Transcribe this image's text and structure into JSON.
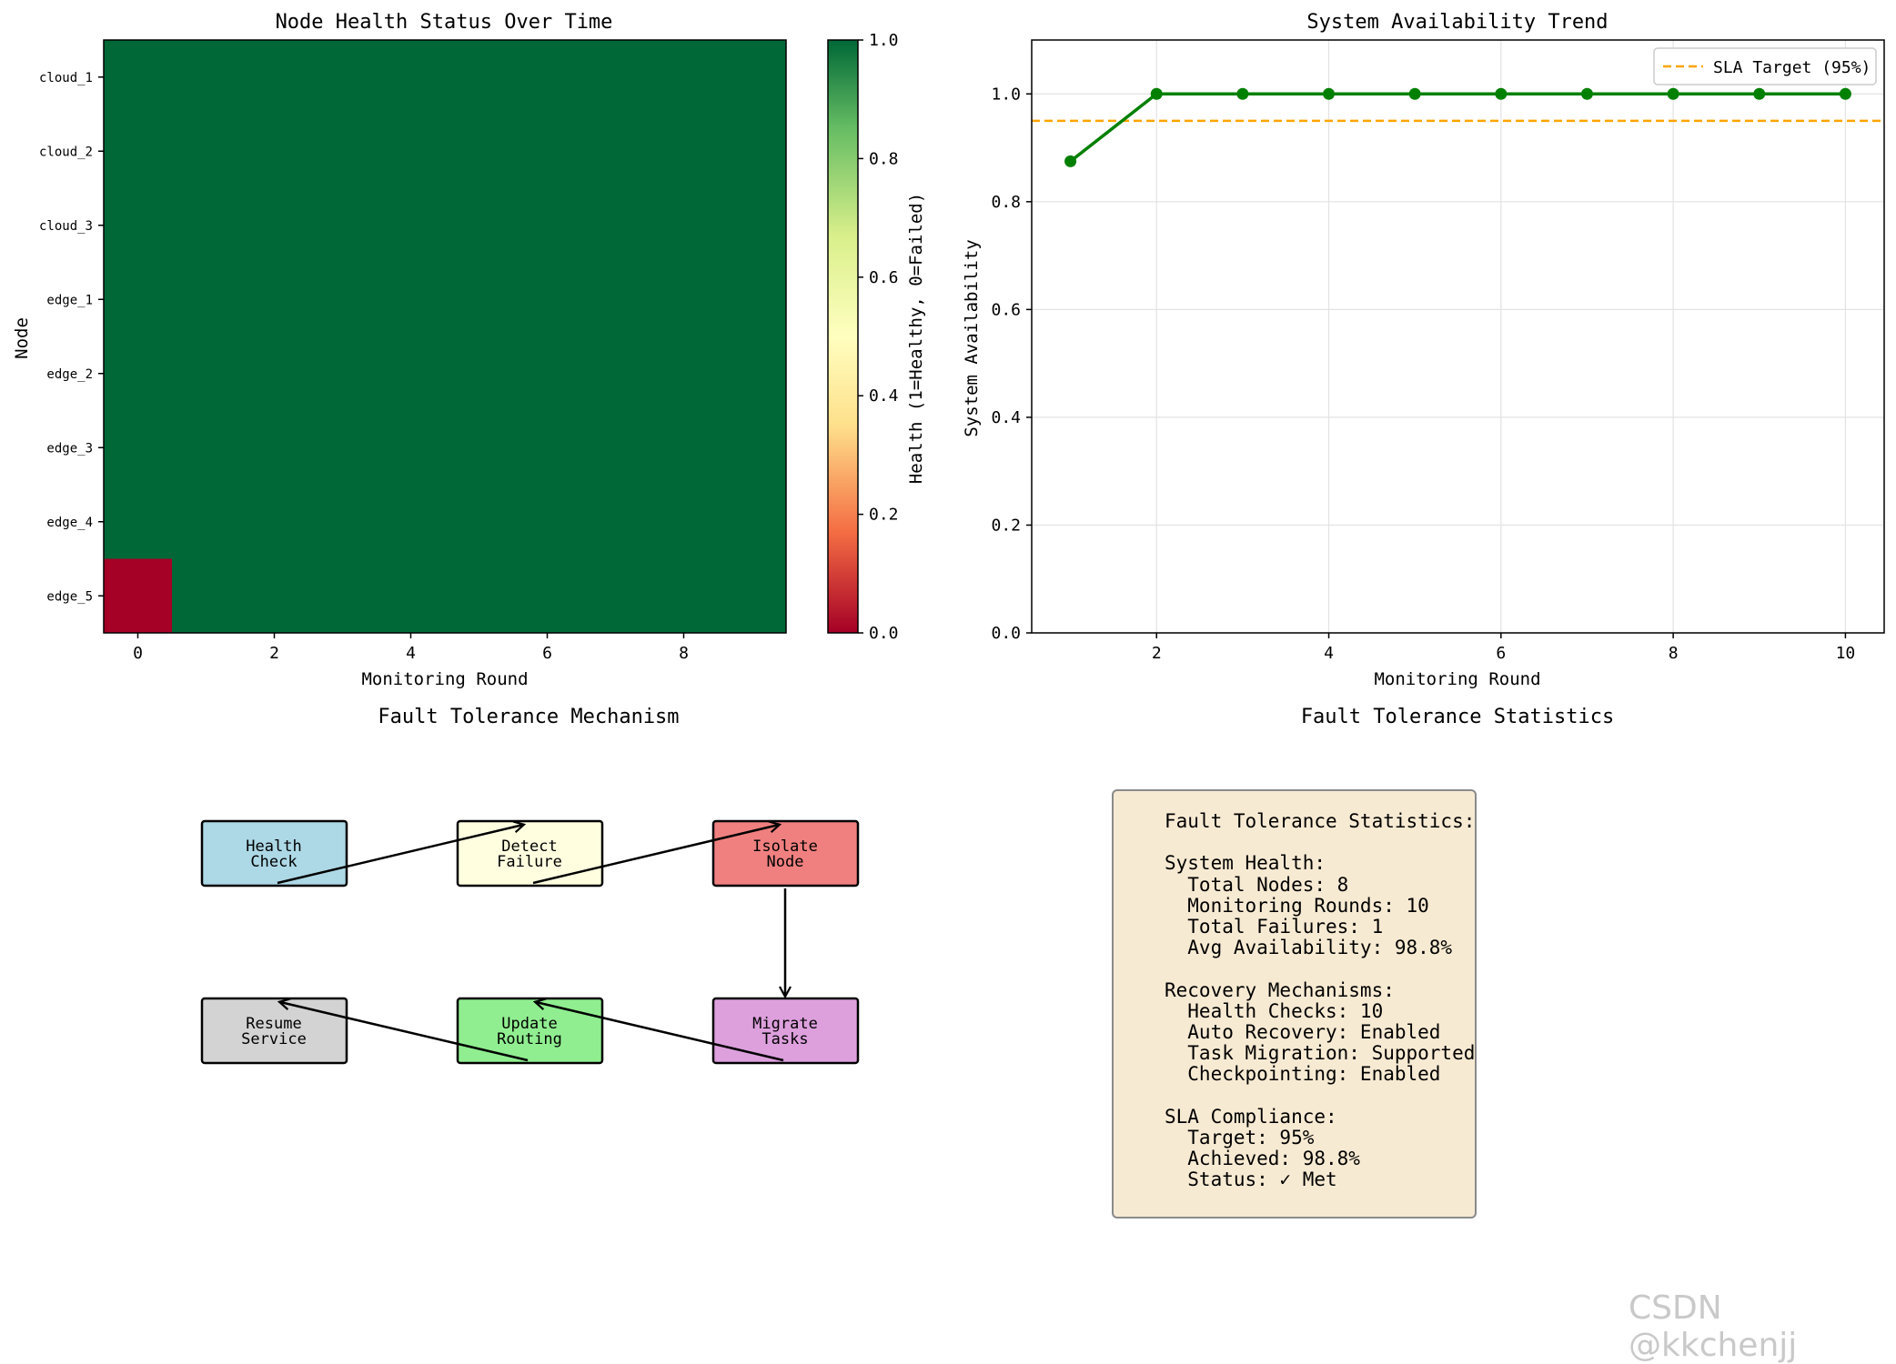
{
  "chart_data": [
    {
      "type": "heatmap",
      "title": "Node Health Status Over Time",
      "xlabel": "Monitoring Round",
      "ylabel": "Node",
      "rows": [
        "cloud_1",
        "cloud_2",
        "cloud_3",
        "edge_1",
        "edge_2",
        "edge_3",
        "edge_4",
        "edge_5"
      ],
      "x_ticks": [
        0,
        2,
        4,
        6,
        8
      ],
      "columns": 10,
      "values": [
        [
          1,
          1,
          1,
          1,
          1,
          1,
          1,
          1,
          1,
          1
        ],
        [
          1,
          1,
          1,
          1,
          1,
          1,
          1,
          1,
          1,
          1
        ],
        [
          1,
          1,
          1,
          1,
          1,
          1,
          1,
          1,
          1,
          1
        ],
        [
          1,
          1,
          1,
          1,
          1,
          1,
          1,
          1,
          1,
          1
        ],
        [
          1,
          1,
          1,
          1,
          1,
          1,
          1,
          1,
          1,
          1
        ],
        [
          1,
          1,
          1,
          1,
          1,
          1,
          1,
          1,
          1,
          1
        ],
        [
          1,
          1,
          1,
          1,
          1,
          1,
          1,
          1,
          1,
          1
        ],
        [
          0,
          1,
          1,
          1,
          1,
          1,
          1,
          1,
          1,
          1
        ]
      ],
      "colorbar": {
        "label": "Health (1=Healthy, 0=Failed)",
        "ticks": [
          "0.0",
          "0.2",
          "0.4",
          "0.6",
          "0.8",
          "1.0"
        ],
        "colormap": "RdYlGn",
        "colors": [
          "#a50026",
          "#f46d43",
          "#fee08b",
          "#ffffbf",
          "#d9ef8b",
          "#66bd63",
          "#006837"
        ],
        "range": [
          0,
          1
        ]
      }
    },
    {
      "type": "line",
      "title": "System Availability Trend",
      "xlabel": "Monitoring Round",
      "ylabel": "System Availability",
      "x": [
        1,
        2,
        3,
        4,
        5,
        6,
        7,
        8,
        9,
        10
      ],
      "series": [
        {
          "name": "Availability",
          "values": [
            0.875,
            1.0,
            1.0,
            1.0,
            1.0,
            1.0,
            1.0,
            1.0,
            1.0,
            1.0
          ],
          "color": "#008000"
        }
      ],
      "hline": {
        "name": "SLA Target (95%)",
        "value": 0.95,
        "color": "#ffa500"
      },
      "x_ticks": [
        "2",
        "4",
        "6",
        "8",
        "10"
      ],
      "y_ticks": [
        "0.0",
        "0.2",
        "0.4",
        "0.6",
        "0.8",
        "1.0"
      ],
      "xlim": [
        0.55,
        10.45
      ],
      "ylim": [
        0,
        1.1
      ],
      "grid": true,
      "legend": "top-right"
    }
  ],
  "mechanism": {
    "title": "Fault Tolerance Mechanism",
    "steps": [
      {
        "label1": "Health",
        "label2": "Check",
        "color": "#add8e6"
      },
      {
        "label1": "Detect",
        "label2": "Failure",
        "color": "#ffffe0"
      },
      {
        "label1": "Isolate",
        "label2": "Node",
        "color": "#f08080"
      },
      {
        "label1": "Migrate",
        "label2": "Tasks",
        "color": "#dda0dd"
      },
      {
        "label1": "Update",
        "label2": "Routing",
        "color": "#90ee90"
      },
      {
        "label1": "Resume",
        "label2": "Service",
        "color": "#d3d3d3"
      }
    ]
  },
  "statistics": {
    "title": "Fault Tolerance Statistics",
    "header": "Fault Tolerance Statistics:",
    "system_health": "System Health:",
    "total_nodes": "  Total Nodes: 8",
    "monitoring_rounds": "  Monitoring Rounds: 10",
    "total_failures": "  Total Failures: 1",
    "avg_availability": "  Avg Availability: 98.8%",
    "recovery": "Recovery Mechanisms:",
    "health_checks": "  Health Checks: 10",
    "auto_recovery": "  Auto Recovery: Enabled",
    "task_migration": "  Task Migration: Supported",
    "checkpointing": "  Checkpointing: Enabled",
    "sla": "SLA Compliance:",
    "target": "  Target: 95%",
    "achieved": "  Achieved: 98.8%",
    "status": "  Status: ✓ Met"
  },
  "watermark": "CSDN @kkchenjj"
}
